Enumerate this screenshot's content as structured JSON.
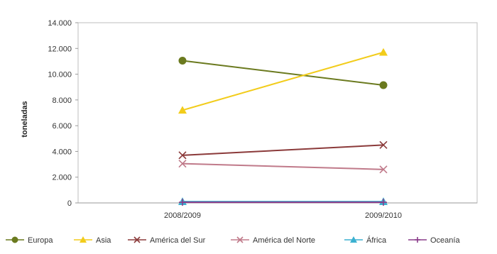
{
  "chart_data": {
    "type": "line",
    "title": "",
    "xlabel": "",
    "ylabel": "toneladas",
    "categories": [
      "2008/2009",
      "2009/2010"
    ],
    "ylim": [
      0,
      14000
    ],
    "yticks": [
      0,
      2000,
      4000,
      6000,
      8000,
      10000,
      12000,
      14000
    ],
    "ytick_labels": [
      "0",
      "2.000",
      "4.000",
      "6.000",
      "8.000",
      "10.000",
      "12.000",
      "14.000"
    ],
    "grid": false,
    "legend_position": "bottom",
    "series": [
      {
        "name": "Europa",
        "values": [
          11050,
          9150
        ],
        "color": "#6b7a1f",
        "marker": "circle"
      },
      {
        "name": "Asia",
        "values": [
          7200,
          11700
        ],
        "color": "#f2cc1b",
        "marker": "triangle"
      },
      {
        "name": "América del Sur",
        "values": [
          3700,
          4500
        ],
        "color": "#8b3a3a",
        "marker": "x"
      },
      {
        "name": "América del Norte",
        "values": [
          3050,
          2600
        ],
        "color": "#c07a8a",
        "marker": "x"
      },
      {
        "name": "África",
        "values": [
          100,
          100
        ],
        "color": "#3bb0d0",
        "marker": "triangle"
      },
      {
        "name": "Oceanía",
        "values": [
          50,
          50
        ],
        "color": "#8a3d8a",
        "marker": "plus"
      }
    ]
  }
}
